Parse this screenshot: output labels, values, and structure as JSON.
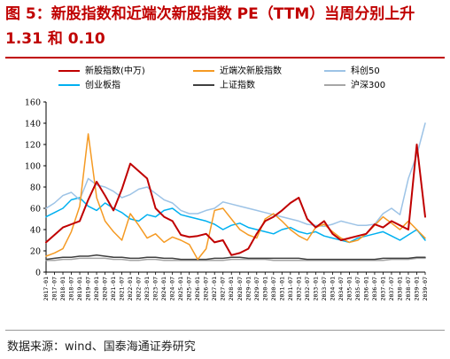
{
  "figure": {
    "title": "图 5：新股指数和近端次新股指数 PE（TTM）当周分别上升 1.31 和 0.10",
    "source": "数据来源：wind、国泰海通证券研究"
  },
  "chart_data": {
    "type": "line",
    "title": "",
    "xlabel": "",
    "ylabel": "",
    "ylim": [
      0,
      160
    ],
    "yticks": [
      0,
      20,
      40,
      60,
      80,
      100,
      120,
      140,
      160
    ],
    "grid": false,
    "legend_position": "top",
    "x_tick_labels": [
      "2017-01",
      "2017-07",
      "2018-01",
      "2018-07",
      "2019-01",
      "2019-07",
      "2020-01",
      "2020-07",
      "2021-01",
      "2021-07",
      "2022-01",
      "2022-07",
      "2023-01",
      "2023-07",
      "2024-01",
      "2024-07",
      "2025-01",
      "2025-07",
      "2026-01",
      "2026-07",
      "2027-01",
      "2027-07",
      "2028-01",
      "2028-07",
      "2029-01",
      "2029-07",
      "2030-01",
      "2030-07",
      "2031-01",
      "2031-07",
      "2032-01",
      "2032-07",
      "2033-01",
      "2033-07",
      "2034-01",
      "2034-07",
      "2035-01",
      "2035-07",
      "2036-01",
      "2036-07",
      "2037-01",
      "2037-07",
      "2038-01",
      "2038-07",
      "2039-01",
      "2039-07"
    ],
    "x": [
      2017.0,
      2017.5,
      2018.0,
      2018.5,
      2019.0,
      2019.5,
      2020.0,
      2020.5,
      2021.0,
      2021.5,
      2022.0,
      2022.5,
      2023.0,
      2023.5,
      2024.0,
      2024.5,
      2025.0,
      2025.5,
      2026.0,
      2026.5,
      2027.0,
      2027.5,
      2028.0,
      2028.5,
      2029.0,
      2029.5,
      2030.0,
      2030.5,
      2031.0,
      2031.5,
      2032.0,
      2032.5,
      2033.0,
      2033.5,
      2034.0,
      2034.5,
      2035.0,
      2035.5,
      2036.0,
      2036.5,
      2037.0,
      2037.5,
      2038.0,
      2038.5,
      2039.0,
      2039.5
    ],
    "series": [
      {
        "name": "新股指数(中万)",
        "color": "#c00000",
        "width": 2,
        "values": [
          28,
          35,
          42,
          45,
          48,
          68,
          85,
          72,
          58,
          78,
          102,
          95,
          88,
          60,
          52,
          48,
          35,
          33,
          34,
          36,
          28,
          30,
          16,
          18,
          22,
          36,
          48,
          52,
          58,
          65,
          70,
          50,
          42,
          48,
          36,
          30,
          32,
          34,
          36,
          45,
          42,
          48,
          44,
          40,
          120,
          52
        ]
      },
      {
        "name": "近端次新股指数",
        "color": "#f59a23",
        "width": 1.5,
        "values": [
          15,
          18,
          22,
          38,
          62,
          130,
          70,
          48,
          38,
          30,
          55,
          44,
          32,
          36,
          28,
          33,
          30,
          26,
          12,
          22,
          58,
          60,
          50,
          40,
          35,
          32,
          50,
          55,
          48,
          40,
          34,
          30,
          42,
          45,
          38,
          32,
          28,
          30,
          36,
          44,
          52,
          46,
          40,
          48,
          40,
          32
        ]
      },
      {
        "name": "科创50",
        "color": "#9dc3e6",
        "width": 1.5,
        "values": [
          60,
          65,
          72,
          75,
          68,
          88,
          82,
          80,
          76,
          70,
          73,
          78,
          80,
          74,
          68,
          65,
          58,
          55,
          55,
          58,
          60,
          66,
          64,
          62,
          60,
          58,
          56,
          54,
          52,
          50,
          48,
          45,
          44,
          43,
          45,
          48,
          46,
          44,
          44,
          45,
          55,
          60,
          54,
          88,
          110,
          140
        ]
      },
      {
        "name": "创业板指",
        "color": "#00b0f0",
        "width": 1.5,
        "values": [
          52,
          56,
          60,
          68,
          70,
          62,
          58,
          65,
          60,
          56,
          50,
          48,
          54,
          52,
          58,
          60,
          54,
          52,
          50,
          48,
          45,
          40,
          44,
          46,
          42,
          40,
          38,
          36,
          40,
          42,
          38,
          36,
          38,
          34,
          32,
          30,
          28,
          32,
          34,
          36,
          38,
          34,
          30,
          35,
          40,
          30
        ]
      },
      {
        "name": "上证指数",
        "color": "#404040",
        "width": 1.5,
        "values": [
          12,
          13,
          14,
          14,
          15,
          15,
          16,
          15,
          14,
          14,
          13,
          13,
          14,
          14,
          13,
          13,
          12,
          12,
          12,
          12,
          13,
          13,
          14,
          14,
          13,
          13,
          13,
          13,
          13,
          13,
          13,
          12,
          12,
          12,
          12,
          12,
          12,
          12,
          12,
          12,
          13,
          13,
          13,
          13,
          14,
          14
        ]
      },
      {
        "name": "沪深300",
        "color": "#a6a6a6",
        "width": 1.5,
        "values": [
          11,
          11,
          12,
          12,
          13,
          13,
          13,
          13,
          12,
          12,
          11,
          11,
          12,
          12,
          11,
          11,
          11,
          11,
          11,
          11,
          11,
          11,
          12,
          12,
          12,
          12,
          12,
          11,
          11,
          11,
          11,
          11,
          11,
          11,
          11,
          11,
          11,
          11,
          11,
          11,
          11,
          12,
          12,
          12,
          13,
          13
        ]
      }
    ]
  }
}
